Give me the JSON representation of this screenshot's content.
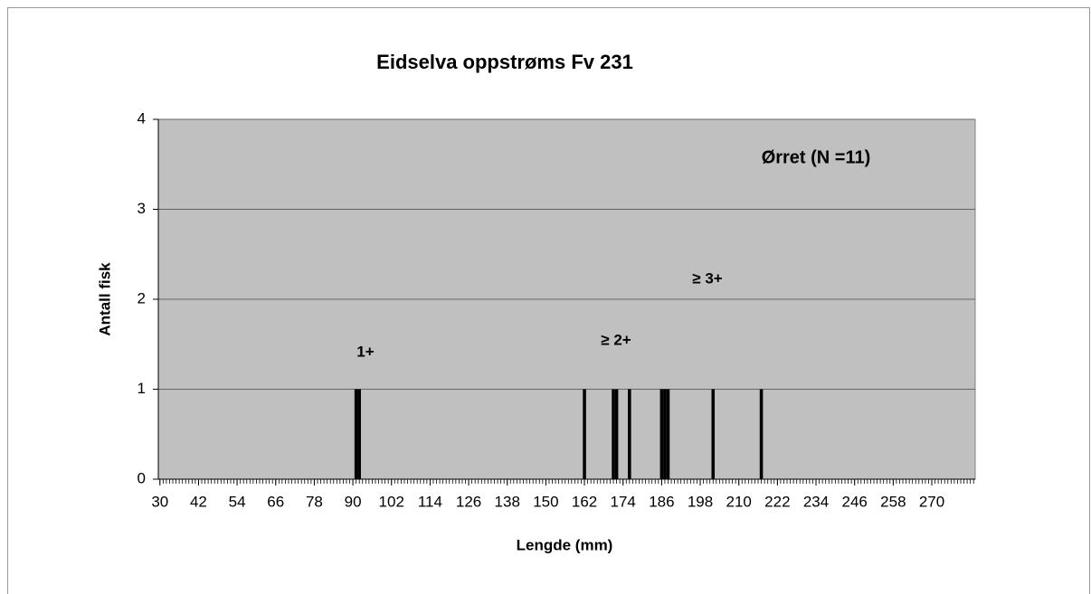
{
  "chart_data": {
    "type": "bar",
    "title": "Eidselva oppstrøms Fv 231",
    "xlabel": "Lengde (mm)",
    "ylabel": "Antall fisk",
    "annotations": [
      "Ørret (N =11)",
      "1+",
      "≥ 2+",
      "≥ 3+"
    ],
    "x": [
      91,
      92,
      162,
      171,
      172,
      176,
      186,
      187,
      188,
      202,
      217
    ],
    "values": [
      1,
      1,
      1,
      1,
      1,
      1,
      1,
      1,
      1,
      1,
      1
    ],
    "color": "#000000",
    "xlim": [
      29.5,
      283.5
    ],
    "xticks": [
      30,
      42,
      54,
      66,
      78,
      90,
      102,
      114,
      126,
      138,
      150,
      162,
      174,
      186,
      198,
      210,
      222,
      234,
      246,
      258,
      270
    ],
    "ylim": [
      0,
      4
    ],
    "yticks": [
      0,
      1,
      2,
      3,
      4
    ],
    "grid": true
  }
}
